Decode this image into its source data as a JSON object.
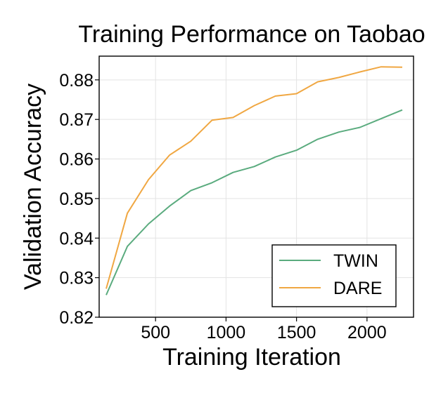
{
  "chart_data": {
    "type": "line",
    "title": "Training Performance on Taobao",
    "xlabel": "Training Iteration",
    "ylabel": "Validation Accuracy",
    "xlim": [
      100,
      2330
    ],
    "ylim": [
      0.82,
      0.886
    ],
    "xticks": [
      500,
      1000,
      1500,
      2000
    ],
    "xtick_labels": [
      "500",
      "1000",
      "1500",
      "2000"
    ],
    "yticks": [
      0.82,
      0.83,
      0.84,
      0.85,
      0.86,
      0.87,
      0.88
    ],
    "ytick_labels": [
      "0.82",
      "0.83",
      "0.84",
      "0.85",
      "0.86",
      "0.87",
      "0.88"
    ],
    "grid": true,
    "legend_position": "bottom-right",
    "x": [
      150,
      300,
      450,
      600,
      750,
      900,
      1050,
      1200,
      1350,
      1500,
      1650,
      1800,
      1950,
      2100,
      2250
    ],
    "series": [
      {
        "name": "TWIN",
        "color": "#5aab7e",
        "values": [
          0.8256,
          0.8379,
          0.8436,
          0.8481,
          0.852,
          0.854,
          0.8566,
          0.8581,
          0.8605,
          0.8622,
          0.865,
          0.8668,
          0.868,
          0.8702,
          0.8724
        ]
      },
      {
        "name": "DARE",
        "color": "#f0a742",
        "values": [
          0.8272,
          0.8463,
          0.8548,
          0.861,
          0.8645,
          0.8698,
          0.8705,
          0.8735,
          0.8759,
          0.8765,
          0.8795,
          0.8806,
          0.882,
          0.8833,
          0.8832
        ]
      }
    ]
  }
}
